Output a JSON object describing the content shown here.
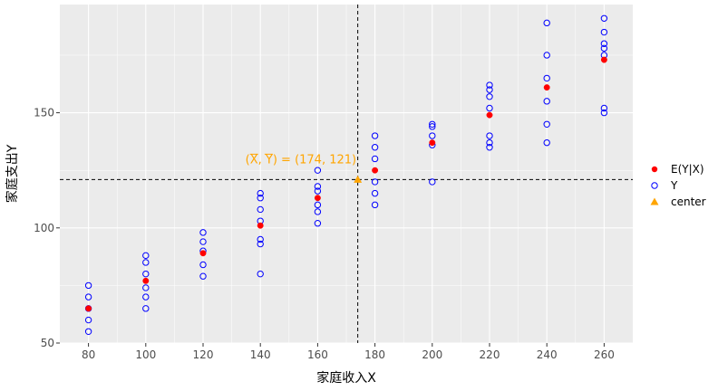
{
  "chart_data": {
    "type": "scatter",
    "title": "",
    "xlabel": "家庭收入X",
    "ylabel": "家庭支出Y",
    "xlim": [
      70,
      270
    ],
    "ylim": [
      50,
      197
    ],
    "x_ticks": [
      80,
      100,
      120,
      140,
      160,
      180,
      200,
      220,
      240,
      260
    ],
    "y_ticks": [
      50,
      100,
      150
    ],
    "grid": true,
    "legend_position": "right",
    "series": [
      {
        "name": "E(Y|X)",
        "marker": "filled-circle",
        "color": "#ff0000",
        "points": [
          [
            80,
            65
          ],
          [
            100,
            77
          ],
          [
            120,
            89
          ],
          [
            140,
            101
          ],
          [
            160,
            113
          ],
          [
            180,
            125
          ],
          [
            200,
            137
          ],
          [
            220,
            149
          ],
          [
            240,
            161
          ],
          [
            260,
            173
          ]
        ]
      },
      {
        "name": "Y",
        "marker": "open-circle",
        "color": "#0000ff",
        "points": [
          [
            80,
            55
          ],
          [
            80,
            60
          ],
          [
            80,
            65
          ],
          [
            80,
            70
          ],
          [
            80,
            75
          ],
          [
            100,
            65
          ],
          [
            100,
            70
          ],
          [
            100,
            74
          ],
          [
            100,
            80
          ],
          [
            100,
            85
          ],
          [
            100,
            88
          ],
          [
            120,
            79
          ],
          [
            120,
            84
          ],
          [
            120,
            90
          ],
          [
            120,
            94
          ],
          [
            120,
            98
          ],
          [
            140,
            80
          ],
          [
            140,
            93
          ],
          [
            140,
            95
          ],
          [
            140,
            103
          ],
          [
            140,
            108
          ],
          [
            140,
            113
          ],
          [
            140,
            115
          ],
          [
            160,
            102
          ],
          [
            160,
            107
          ],
          [
            160,
            110
          ],
          [
            160,
            116
          ],
          [
            160,
            118
          ],
          [
            160,
            125
          ],
          [
            180,
            110
          ],
          [
            180,
            115
          ],
          [
            180,
            120
          ],
          [
            180,
            130
          ],
          [
            180,
            135
          ],
          [
            180,
            140
          ],
          [
            200,
            120
          ],
          [
            200,
            136
          ],
          [
            200,
            140
          ],
          [
            200,
            144
          ],
          [
            200,
            145
          ],
          [
            220,
            135
          ],
          [
            220,
            137
          ],
          [
            220,
            140
          ],
          [
            220,
            152
          ],
          [
            220,
            157
          ],
          [
            220,
            160
          ],
          [
            220,
            162
          ],
          [
            240,
            137
          ],
          [
            240,
            145
          ],
          [
            240,
            155
          ],
          [
            240,
            165
          ],
          [
            240,
            175
          ],
          [
            240,
            189
          ],
          [
            260,
            150
          ],
          [
            260,
            152
          ],
          [
            260,
            175
          ],
          [
            260,
            178
          ],
          [
            260,
            180
          ],
          [
            260,
            185
          ],
          [
            260,
            191
          ]
        ]
      },
      {
        "name": "center",
        "marker": "filled-triangle",
        "color": "#ffa500",
        "points": [
          [
            174,
            121
          ]
        ]
      }
    ],
    "reference_lines": {
      "vline": 174,
      "hline": 121,
      "style": "dashed"
    },
    "annotation": {
      "text": "= (174, 121)",
      "x_symbol": "X",
      "y_symbol": "Y",
      "color": "#ffa500",
      "at": [
        174,
        121
      ]
    }
  },
  "colors": {
    "panel_bg": "#ebebeb",
    "grid_major": "#ffffff",
    "e_series": "#ff0000",
    "y_series": "#0000ff",
    "center": "#ffa500"
  }
}
